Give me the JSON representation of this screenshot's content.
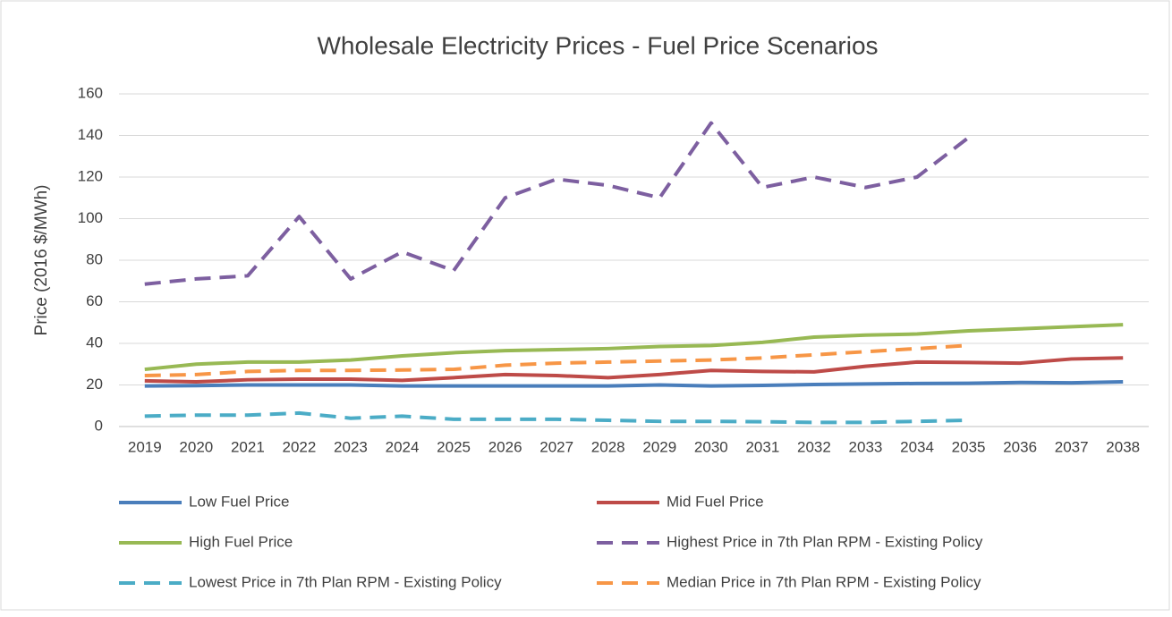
{
  "chart_data": {
    "type": "line",
    "title": "Wholesale Electricity Prices - Fuel Price Scenarios",
    "y_label": "Price (2016 $/MWh)",
    "categories": [
      "2019",
      "2020",
      "2021",
      "2022",
      "2023",
      "2024",
      "2025",
      "2026",
      "2027",
      "2028",
      "2029",
      "2030",
      "2031",
      "2032",
      "2033",
      "2034",
      "2035",
      "2036",
      "2037",
      "2038"
    ],
    "ylim": [
      0,
      160
    ],
    "yticks": [
      0,
      20,
      40,
      60,
      80,
      100,
      120,
      140,
      160
    ],
    "grid": true,
    "legend": "bottom",
    "series": [
      {
        "name": "Low Fuel Price",
        "color": "#4a7ebb",
        "dashed": false,
        "values": [
          19.5,
          19.7,
          20,
          20,
          20,
          19.5,
          19.5,
          19.5,
          19.5,
          19.5,
          20,
          19.5,
          19.8,
          20.2,
          20.5,
          20.7,
          20.8,
          21.2,
          21,
          21.5
        ]
      },
      {
        "name": "Mid Fuel Price",
        "color": "#be4b48",
        "dashed": false,
        "values": [
          22,
          21.5,
          22.5,
          22.8,
          22.8,
          22.2,
          23.5,
          25,
          24.5,
          23.5,
          25,
          27,
          26.5,
          26.3,
          29,
          31,
          30.8,
          30.5,
          32.5,
          33
        ]
      },
      {
        "name": "High Fuel Price",
        "color": "#98b954",
        "dashed": false,
        "values": [
          27.5,
          30,
          31,
          31,
          32,
          34,
          35.5,
          36.5,
          37,
          37.5,
          38.5,
          39,
          40.5,
          43,
          44,
          44.5,
          46,
          47,
          48,
          49
        ]
      },
      {
        "name": "Highest Price in 7th Plan RPM - Existing Policy",
        "color": "#7d5fa0",
        "dashed": true,
        "values": [
          68.5,
          71,
          72.5,
          101,
          71,
          84,
          75,
          110,
          119,
          116,
          110,
          146,
          115,
          120,
          115,
          120,
          139,
          null,
          null,
          null
        ]
      },
      {
        "name": "Lowest Price in 7th Plan RPM - Existing Policy",
        "color": "#4bacc6",
        "dashed": true,
        "values": [
          5,
          5.5,
          5.5,
          6.5,
          4,
          5,
          3.5,
          3.5,
          3.5,
          3,
          2.5,
          2.5,
          2.3,
          2,
          2,
          2.5,
          3,
          null,
          null,
          null
        ]
      },
      {
        "name": "Median Price in 7th Plan RPM - Existing Policy",
        "color": "#f79646",
        "dashed": true,
        "values": [
          24.5,
          25,
          26.5,
          27,
          27,
          27.2,
          27.5,
          29.5,
          30.5,
          31,
          31.5,
          32,
          33,
          34.5,
          36,
          37.5,
          39,
          null,
          null,
          null
        ]
      }
    ]
  }
}
